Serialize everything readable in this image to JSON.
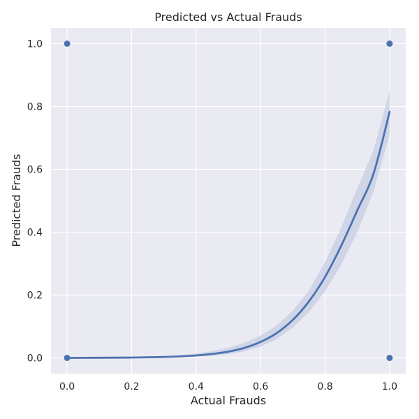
{
  "chart_data": {
    "type": "scatter",
    "title": "Predicted vs Actual Frauds",
    "xlabel": "Actual Frauds",
    "ylabel": "Predicted Frauds",
    "xlim": [
      -0.05,
      1.05
    ],
    "ylim": [
      -0.05,
      1.05
    ],
    "xticks": [
      0.0,
      0.2,
      0.4,
      0.6,
      0.8,
      1.0
    ],
    "xtick_labels": [
      "0.0",
      "0.2",
      "0.4",
      "0.6",
      "0.8",
      "1.0"
    ],
    "yticks": [
      0.0,
      0.2,
      0.4,
      0.6,
      0.8,
      1.0
    ],
    "ytick_labels": [
      "0.0",
      "0.2",
      "0.4",
      "0.6",
      "0.8",
      "1.0"
    ],
    "grid": true,
    "legend": "none",
    "colors": {
      "background": "#eaeaf2",
      "grid": "#ffffff",
      "points": "#4c72b0",
      "line": "#4c72b0",
      "band": "#c5cde3"
    },
    "points": [
      {
        "x": 0.0,
        "y": 1.0
      },
      {
        "x": 1.0,
        "y": 1.0
      },
      {
        "x": 0.0,
        "y": 0.0
      },
      {
        "x": 1.0,
        "y": 0.0
      }
    ],
    "fit": {
      "type": "logistic",
      "x": [
        0.0,
        0.1,
        0.2,
        0.3,
        0.35,
        0.4,
        0.45,
        0.5,
        0.55,
        0.6,
        0.65,
        0.7,
        0.75,
        0.8,
        0.85,
        0.9,
        0.95,
        1.0
      ],
      "y": [
        0.0,
        0.0004,
        0.0011,
        0.0029,
        0.0048,
        0.0078,
        0.0125,
        0.02,
        0.032,
        0.051,
        0.079,
        0.121,
        0.18,
        0.258,
        0.357,
        0.47,
        0.586,
        0.783
      ],
      "ci_lower": [
        0.0,
        0.0002,
        0.0005,
        0.0014,
        0.0025,
        0.0043,
        0.0073,
        0.012,
        0.021,
        0.036,
        0.06,
        0.096,
        0.146,
        0.212,
        0.296,
        0.4,
        0.53,
        0.71
      ],
      "ci_upper": [
        0.0,
        0.0007,
        0.0022,
        0.0055,
        0.0088,
        0.0138,
        0.021,
        0.032,
        0.048,
        0.071,
        0.103,
        0.15,
        0.215,
        0.305,
        0.415,
        0.54,
        0.66,
        0.85
      ]
    }
  }
}
